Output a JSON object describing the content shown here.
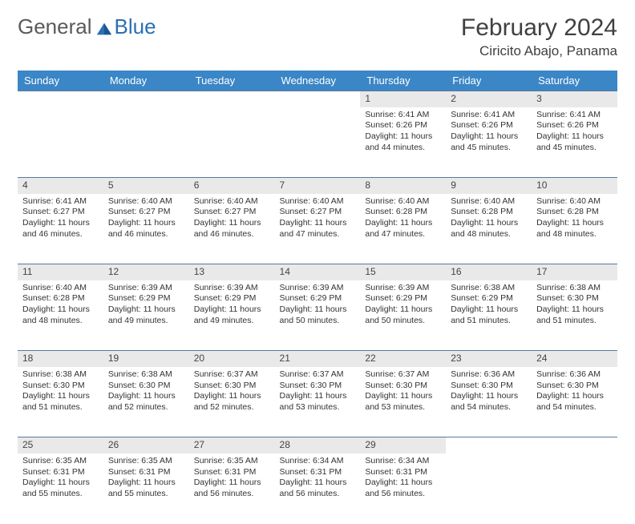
{
  "logo": {
    "text1": "General",
    "text2": "Blue"
  },
  "title": "February 2024",
  "location": "Ciricito Abajo, Panama",
  "header_bg": "#3b86c6",
  "daynum_bg": "#e9e9e9",
  "rule_color": "#5b7a99",
  "weekdays": [
    "Sunday",
    "Monday",
    "Tuesday",
    "Wednesday",
    "Thursday",
    "Friday",
    "Saturday"
  ],
  "weeks": [
    [
      null,
      null,
      null,
      null,
      {
        "n": "1",
        "sr": "Sunrise: 6:41 AM",
        "ss": "Sunset: 6:26 PM",
        "dl": "Daylight: 11 hours and 44 minutes."
      },
      {
        "n": "2",
        "sr": "Sunrise: 6:41 AM",
        "ss": "Sunset: 6:26 PM",
        "dl": "Daylight: 11 hours and 45 minutes."
      },
      {
        "n": "3",
        "sr": "Sunrise: 6:41 AM",
        "ss": "Sunset: 6:26 PM",
        "dl": "Daylight: 11 hours and 45 minutes."
      }
    ],
    [
      {
        "n": "4",
        "sr": "Sunrise: 6:41 AM",
        "ss": "Sunset: 6:27 PM",
        "dl": "Daylight: 11 hours and 46 minutes."
      },
      {
        "n": "5",
        "sr": "Sunrise: 6:40 AM",
        "ss": "Sunset: 6:27 PM",
        "dl": "Daylight: 11 hours and 46 minutes."
      },
      {
        "n": "6",
        "sr": "Sunrise: 6:40 AM",
        "ss": "Sunset: 6:27 PM",
        "dl": "Daylight: 11 hours and 46 minutes."
      },
      {
        "n": "7",
        "sr": "Sunrise: 6:40 AM",
        "ss": "Sunset: 6:27 PM",
        "dl": "Daylight: 11 hours and 47 minutes."
      },
      {
        "n": "8",
        "sr": "Sunrise: 6:40 AM",
        "ss": "Sunset: 6:28 PM",
        "dl": "Daylight: 11 hours and 47 minutes."
      },
      {
        "n": "9",
        "sr": "Sunrise: 6:40 AM",
        "ss": "Sunset: 6:28 PM",
        "dl": "Daylight: 11 hours and 48 minutes."
      },
      {
        "n": "10",
        "sr": "Sunrise: 6:40 AM",
        "ss": "Sunset: 6:28 PM",
        "dl": "Daylight: 11 hours and 48 minutes."
      }
    ],
    [
      {
        "n": "11",
        "sr": "Sunrise: 6:40 AM",
        "ss": "Sunset: 6:28 PM",
        "dl": "Daylight: 11 hours and 48 minutes."
      },
      {
        "n": "12",
        "sr": "Sunrise: 6:39 AM",
        "ss": "Sunset: 6:29 PM",
        "dl": "Daylight: 11 hours and 49 minutes."
      },
      {
        "n": "13",
        "sr": "Sunrise: 6:39 AM",
        "ss": "Sunset: 6:29 PM",
        "dl": "Daylight: 11 hours and 49 minutes."
      },
      {
        "n": "14",
        "sr": "Sunrise: 6:39 AM",
        "ss": "Sunset: 6:29 PM",
        "dl": "Daylight: 11 hours and 50 minutes."
      },
      {
        "n": "15",
        "sr": "Sunrise: 6:39 AM",
        "ss": "Sunset: 6:29 PM",
        "dl": "Daylight: 11 hours and 50 minutes."
      },
      {
        "n": "16",
        "sr": "Sunrise: 6:38 AM",
        "ss": "Sunset: 6:29 PM",
        "dl": "Daylight: 11 hours and 51 minutes."
      },
      {
        "n": "17",
        "sr": "Sunrise: 6:38 AM",
        "ss": "Sunset: 6:30 PM",
        "dl": "Daylight: 11 hours and 51 minutes."
      }
    ],
    [
      {
        "n": "18",
        "sr": "Sunrise: 6:38 AM",
        "ss": "Sunset: 6:30 PM",
        "dl": "Daylight: 11 hours and 51 minutes."
      },
      {
        "n": "19",
        "sr": "Sunrise: 6:38 AM",
        "ss": "Sunset: 6:30 PM",
        "dl": "Daylight: 11 hours and 52 minutes."
      },
      {
        "n": "20",
        "sr": "Sunrise: 6:37 AM",
        "ss": "Sunset: 6:30 PM",
        "dl": "Daylight: 11 hours and 52 minutes."
      },
      {
        "n": "21",
        "sr": "Sunrise: 6:37 AM",
        "ss": "Sunset: 6:30 PM",
        "dl": "Daylight: 11 hours and 53 minutes."
      },
      {
        "n": "22",
        "sr": "Sunrise: 6:37 AM",
        "ss": "Sunset: 6:30 PM",
        "dl": "Daylight: 11 hours and 53 minutes."
      },
      {
        "n": "23",
        "sr": "Sunrise: 6:36 AM",
        "ss": "Sunset: 6:30 PM",
        "dl": "Daylight: 11 hours and 54 minutes."
      },
      {
        "n": "24",
        "sr": "Sunrise: 6:36 AM",
        "ss": "Sunset: 6:30 PM",
        "dl": "Daylight: 11 hours and 54 minutes."
      }
    ],
    [
      {
        "n": "25",
        "sr": "Sunrise: 6:35 AM",
        "ss": "Sunset: 6:31 PM",
        "dl": "Daylight: 11 hours and 55 minutes."
      },
      {
        "n": "26",
        "sr": "Sunrise: 6:35 AM",
        "ss": "Sunset: 6:31 PM",
        "dl": "Daylight: 11 hours and 55 minutes."
      },
      {
        "n": "27",
        "sr": "Sunrise: 6:35 AM",
        "ss": "Sunset: 6:31 PM",
        "dl": "Daylight: 11 hours and 56 minutes."
      },
      {
        "n": "28",
        "sr": "Sunrise: 6:34 AM",
        "ss": "Sunset: 6:31 PM",
        "dl": "Daylight: 11 hours and 56 minutes."
      },
      {
        "n": "29",
        "sr": "Sunrise: 6:34 AM",
        "ss": "Sunset: 6:31 PM",
        "dl": "Daylight: 11 hours and 56 minutes."
      },
      null,
      null
    ]
  ]
}
